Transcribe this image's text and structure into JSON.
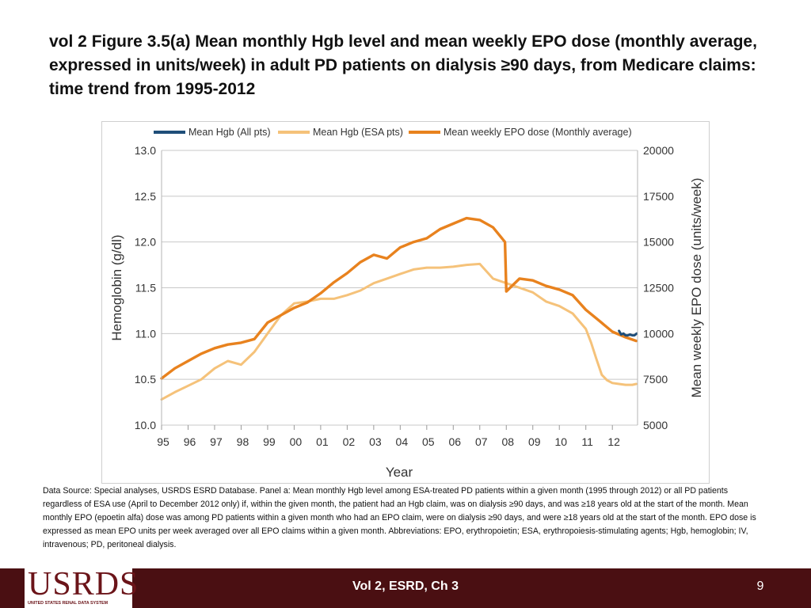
{
  "slide": {
    "title": "vol 2  Figure 3.5(a) Mean monthly Hgb level and mean weekly EPO dose (monthly average, expressed in units/week) in adult PD patients on dialysis ≥90 days, from Medicare claims: time trend from 1995-2012",
    "source": "Data Source: Special analyses, USRDS ESRD Database. Panel a: Mean monthly Hgb level among ESA-treated PD patients within a given month (1995 through 2012) or all PD patients regardless of ESA use (April to December 2012 only) if, within the given month, the patient had an Hgb claim, was on dialysis ≥90 days, and was ≥18 years old at the start of the month. Mean monthly EPO (epoetin alfa) dose was among PD patients within a given month who had an EPO claim, were on dialysis ≥90 days, and were ≥18 years old at the start of the month. EPO dose is expressed as mean EPO units per week averaged over all EPO claims within a given month. Abbreviations: EPO, erythropoietin; ESA, erythropoiesis-stimulating agents; Hgb, hemoglobin; IV, intravenous; PD, peritoneal dialysis.",
    "footer_center": "Vol 2, ESRD, Ch 3",
    "page_number": "9",
    "logo_text": "USRDS",
    "logo_subtext": "UNITED STATES RENAL DATA SYSTEM"
  },
  "chart_data": {
    "type": "line",
    "xlabel": "Year",
    "ylabel_left": "Hemoglobin (g/dl)",
    "ylabel_right": "Mean weekly EPO dose (units/week)",
    "ylim_left": [
      10.0,
      13.0
    ],
    "ylim_right": [
      5000,
      20000
    ],
    "yticks_left": [
      "13.0",
      "12.5",
      "12.0",
      "11.5",
      "11.0",
      "10.5",
      "10.0"
    ],
    "yticks_right": [
      "20000",
      "17500",
      "15000",
      "12500",
      "10000",
      "7500",
      "5000"
    ],
    "x_tick_labels": [
      "95",
      "96",
      "97",
      "98",
      "99",
      "00",
      "01",
      "02",
      "03",
      "04",
      "05",
      "06",
      "07",
      "08",
      "09",
      "10",
      "11",
      "12"
    ],
    "x_range": [
      1995.0,
      2012.95
    ],
    "legend_position": "top",
    "colors": {
      "hgb_all": "#1f4e79",
      "hgb_esa": "#f5c27a",
      "epo": "#e8821e",
      "grid": "#c8c8c8",
      "axis_text": "#333333"
    },
    "series": [
      {
        "name": "Mean Hgb (All pts)",
        "axis": "left",
        "x": [
          2012.25,
          2012.333,
          2012.417,
          2012.5,
          2012.583,
          2012.667,
          2012.75,
          2012.833,
          2012.917
        ],
        "values": [
          11.03,
          10.99,
          11.0,
          10.98,
          10.98,
          10.99,
          10.98,
          10.98,
          11.0
        ]
      },
      {
        "name": "Mean Hgb (ESA pts)",
        "axis": "left",
        "x": [
          1995.0,
          1995.5,
          1996.0,
          1996.5,
          1997.0,
          1997.5,
          1998.0,
          1998.5,
          1999.0,
          1999.5,
          2000.0,
          2000.5,
          2001.0,
          2001.5,
          2002.0,
          2002.5,
          2003.0,
          2003.5,
          2004.0,
          2004.5,
          2005.0,
          2005.5,
          2006.0,
          2006.5,
          2007.0,
          2007.5,
          2008.0,
          2008.5,
          2009.0,
          2009.5,
          2010.0,
          2010.5,
          2011.0,
          2011.2,
          2011.4,
          2011.6,
          2011.8,
          2012.0,
          2012.25,
          2012.5,
          2012.75,
          2012.9
        ],
        "values": [
          10.28,
          10.36,
          10.43,
          10.5,
          10.62,
          10.7,
          10.66,
          10.8,
          11.0,
          11.2,
          11.33,
          11.35,
          11.38,
          11.38,
          11.42,
          11.47,
          11.55,
          11.6,
          11.65,
          11.7,
          11.72,
          11.72,
          11.73,
          11.75,
          11.76,
          11.6,
          11.55,
          11.5,
          11.45,
          11.35,
          11.3,
          11.22,
          11.05,
          10.9,
          10.72,
          10.55,
          10.49,
          10.46,
          10.45,
          10.44,
          10.44,
          10.45
        ]
      },
      {
        "name": "Mean weekly EPO dose (Monthly average)",
        "axis": "right",
        "x": [
          1995.0,
          1995.5,
          1996.0,
          1996.5,
          1997.0,
          1997.5,
          1998.0,
          1998.5,
          1999.0,
          1999.5,
          2000.0,
          2000.5,
          2001.0,
          2001.5,
          2002.0,
          2002.5,
          2003.0,
          2003.5,
          2004.0,
          2004.5,
          2005.0,
          2005.5,
          2006.0,
          2006.5,
          2007.0,
          2007.5,
          2007.95,
          2008.0,
          2008.5,
          2009.0,
          2009.5,
          2010.0,
          2010.5,
          2011.0,
          2011.5,
          2012.0,
          2012.5,
          2012.9
        ],
        "values": [
          7550,
          8100,
          8500,
          8900,
          9200,
          9400,
          9500,
          9700,
          10600,
          11000,
          11400,
          11700,
          12200,
          12800,
          13300,
          13900,
          14300,
          14100,
          14700,
          15000,
          15200,
          15700,
          16000,
          16300,
          16200,
          15800,
          15000,
          12300,
          13000,
          12900,
          12600,
          12400,
          12100,
          11300,
          10700,
          10100,
          9800,
          9600
        ]
      }
    ]
  }
}
